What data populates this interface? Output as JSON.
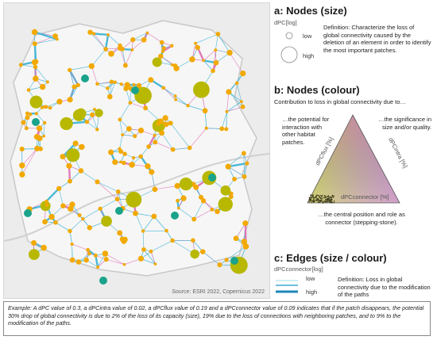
{
  "map": {
    "source": "Source: ESRI 2022, Copernicus 2022"
  },
  "panel_a": {
    "title": "a: Nodes (size)",
    "unit": "dPC[log]",
    "low": "low",
    "high": "high",
    "definition": "Definition: Characterize the loss of global connectivity caused by the deletion of an element in order to identify the most important patches."
  },
  "panel_b": {
    "title": "b: Nodes (colour)",
    "intro": "Contribution to loss in global connectivity due to…",
    "left_text": "…the potential for interaction with other habitat patches.",
    "right_text": "…the significance in size and/or quality.",
    "bottom_text": "…the central position and role as connector (stepping-stone).",
    "axis_left": "dPCflux [%]",
    "axis_right": "dPCintra [%]",
    "axis_bottom": "dPCconnector [%]",
    "colors": {
      "top": "#2aa0c8",
      "left": "#e6e600",
      "right": "#e06ad0"
    }
  },
  "panel_c": {
    "title": "c: Edges (size / colour)",
    "unit": "dPCconnector[log]",
    "low": "low",
    "high": "high",
    "definition": "Definition: Loss in global connectivity due to the modification of the paths"
  },
  "example": "Example: A dPC value of 0.3, a dPCintra value  of 0.02, a dPCflux value of 0.19 and a dPCconnector value of 0.09 indicates that if the patch disappears, the potential 30% drop of global connectivity is due to 2% of the loss of its capacity (size), 19% due to the loss of connections with neighboring patches, and to 9% to the modification of the paths.",
  "colors": {
    "node": "#f2a900",
    "node_big": "#b8b800",
    "hub": "#1aa38a",
    "edge": "#4bb8d8",
    "edge_thin": "#e07ab8"
  }
}
